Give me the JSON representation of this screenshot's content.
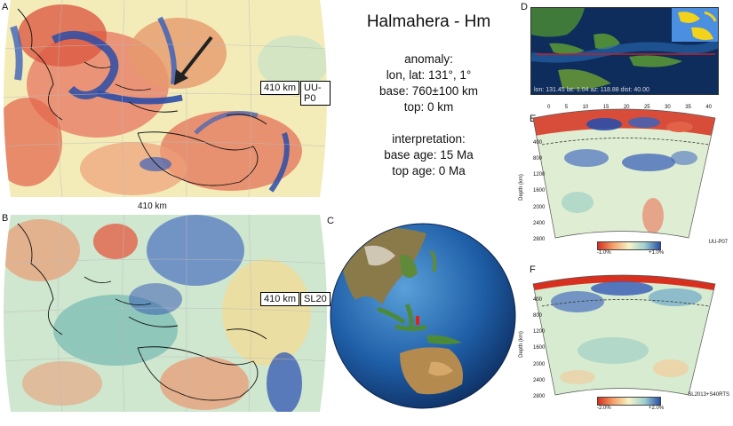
{
  "title": "Halmahera - Hm",
  "anomaly": {
    "header": "anomaly:",
    "lonlat": "lon, lat: 131°, 1°",
    "base": "base: 760±100 km",
    "top": "top:  0 km"
  },
  "interpretation": {
    "header": "interpretation:",
    "base_age": "base age: 15 Ma",
    "top_age": "top age: 0 Ma"
  },
  "panels": {
    "A": {
      "letter": "A",
      "depth_label": "410 km",
      "model_label": "UU-P0",
      "caption": "410 km"
    },
    "B": {
      "letter": "B",
      "depth_label": "410 km",
      "model_label": "SL20"
    },
    "C": {
      "letter": "C"
    },
    "D": {
      "letter": "D",
      "footer_text": "lon: 131.45 lat: 1.04 az: 118.88 dist: 40.00"
    },
    "E": {
      "letter": "E",
      "model_name": "UU-P07",
      "depth_axis_label": "Depth (km)",
      "depth_ticks": [
        "400",
        "800",
        "1200",
        "1600",
        "2000",
        "2400",
        "2800"
      ],
      "dist_ticks": [
        "0",
        "5",
        "10",
        "15",
        "20",
        "25",
        "30",
        "35",
        "40"
      ],
      "cbar_min": "-1.0%",
      "cbar_max": "+1.0%"
    },
    "F": {
      "letter": "F",
      "model_name": "SL2013+S40RTS",
      "depth_axis_label": "Depth (km)",
      "depth_ticks": [
        "400",
        "800",
        "1200",
        "1600",
        "2000",
        "2400",
        "2800"
      ],
      "cbar_min": "-2.0%",
      "cbar_max": "+2.0%"
    }
  },
  "colors": {
    "fast": "#2b4ea8",
    "slow": "#d7301f",
    "neutral": "#f1efc6",
    "ocean": "#1f5fa8"
  }
}
